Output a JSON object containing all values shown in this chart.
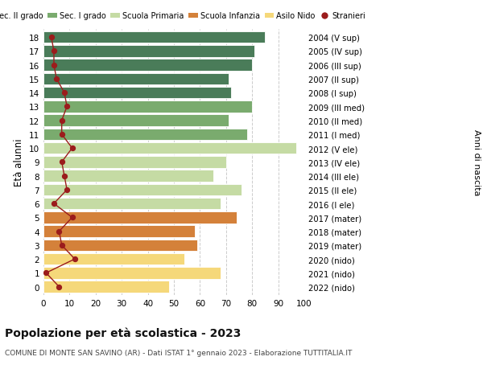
{
  "ages": [
    18,
    17,
    16,
    15,
    14,
    13,
    12,
    11,
    10,
    9,
    8,
    7,
    6,
    5,
    4,
    3,
    2,
    1,
    0
  ],
  "bar_values": [
    85,
    81,
    80,
    71,
    72,
    80,
    71,
    78,
    97,
    70,
    65,
    76,
    68,
    74,
    58,
    59,
    54,
    68,
    48
  ],
  "stranieri": [
    3,
    4,
    4,
    5,
    8,
    9,
    7,
    7,
    11,
    7,
    8,
    9,
    4,
    11,
    6,
    7,
    12,
    1,
    6
  ],
  "right_labels": [
    "2004 (V sup)",
    "2005 (IV sup)",
    "2006 (III sup)",
    "2007 (II sup)",
    "2008 (I sup)",
    "2009 (III med)",
    "2010 (II med)",
    "2011 (I med)",
    "2012 (V ele)",
    "2013 (IV ele)",
    "2014 (III ele)",
    "2015 (II ele)",
    "2016 (I ele)",
    "2017 (mater)",
    "2018 (mater)",
    "2019 (mater)",
    "2020 (nido)",
    "2021 (nido)",
    "2022 (nido)"
  ],
  "bar_colors": [
    "#4a7c59",
    "#4a7c59",
    "#4a7c59",
    "#4a7c59",
    "#4a7c59",
    "#7aab6e",
    "#7aab6e",
    "#7aab6e",
    "#c5dba4",
    "#c5dba4",
    "#c5dba4",
    "#c5dba4",
    "#c5dba4",
    "#d4813a",
    "#d4813a",
    "#d4813a",
    "#f5d87a",
    "#f5d87a",
    "#f5d87a"
  ],
  "legend_labels": [
    "Sec. II grado",
    "Sec. I grado",
    "Scuola Primaria",
    "Scuola Infanzia",
    "Asilo Nido",
    "Stranieri"
  ],
  "legend_colors": [
    "#4a7c59",
    "#7aab6e",
    "#c5dba4",
    "#d4813a",
    "#f5d87a",
    "#9b1c1c"
  ],
  "title": "Popolazione per età scolastica - 2023",
  "subtitle": "COMUNE DI MONTE SAN SAVINO (AR) - Dati ISTAT 1° gennaio 2023 - Elaborazione TUTTITALIA.IT",
  "ylabel": "Età alunni",
  "right_ylabel": "Anni di nascita",
  "xlabel_vals": [
    0,
    10,
    20,
    30,
    40,
    50,
    60,
    70,
    80,
    90,
    100
  ],
  "xlim": [
    0,
    100
  ],
  "stranieri_color": "#9b1c1c",
  "bg_color": "#ffffff",
  "grid_color": "#cccccc"
}
